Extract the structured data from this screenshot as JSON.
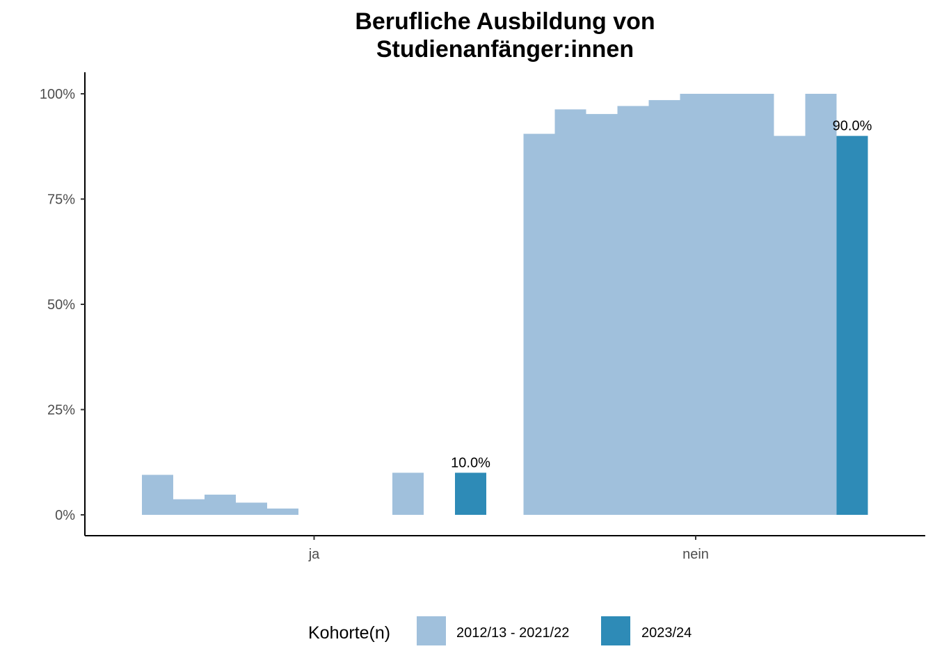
{
  "chart_data": {
    "type": "bar",
    "title_lines": [
      "Berufliche Ausbildung von",
      "Studienanfänger:innen"
    ],
    "xlabel": "",
    "ylabel": "",
    "categories": [
      "ja",
      "nein"
    ],
    "ylim": [
      0,
      1.05
    ],
    "y_ticks": [
      0,
      0.25,
      0.5,
      0.75,
      1.0
    ],
    "y_tick_labels": [
      "0%",
      "25%",
      "50%",
      "75%",
      "100%"
    ],
    "grid": false,
    "legend_position": "bottom",
    "legend": {
      "title": "Kohorte(n)",
      "entries": [
        "2012/13 - 2021/22",
        "2023/24"
      ]
    },
    "series": [
      {
        "name": "2012/13 - 2021/22",
        "color": "#a0c0dc",
        "slots": 10,
        "values": {
          "ja": [
            0.095,
            0.037,
            0.048,
            0.029,
            0.015,
            0,
            0,
            0,
            0.1,
            null
          ],
          "nein": [
            0.905,
            0.963,
            0.952,
            0.971,
            0.985,
            1.0,
            1.0,
            1.0,
            0.9,
            1.0
          ]
        }
      },
      {
        "name": "2023/24",
        "color": "#2e8bb7",
        "values": {
          "ja": 0.1,
          "nein": 0.9
        },
        "labels": {
          "ja": "10.0%",
          "nein": "90.0%"
        }
      }
    ]
  }
}
